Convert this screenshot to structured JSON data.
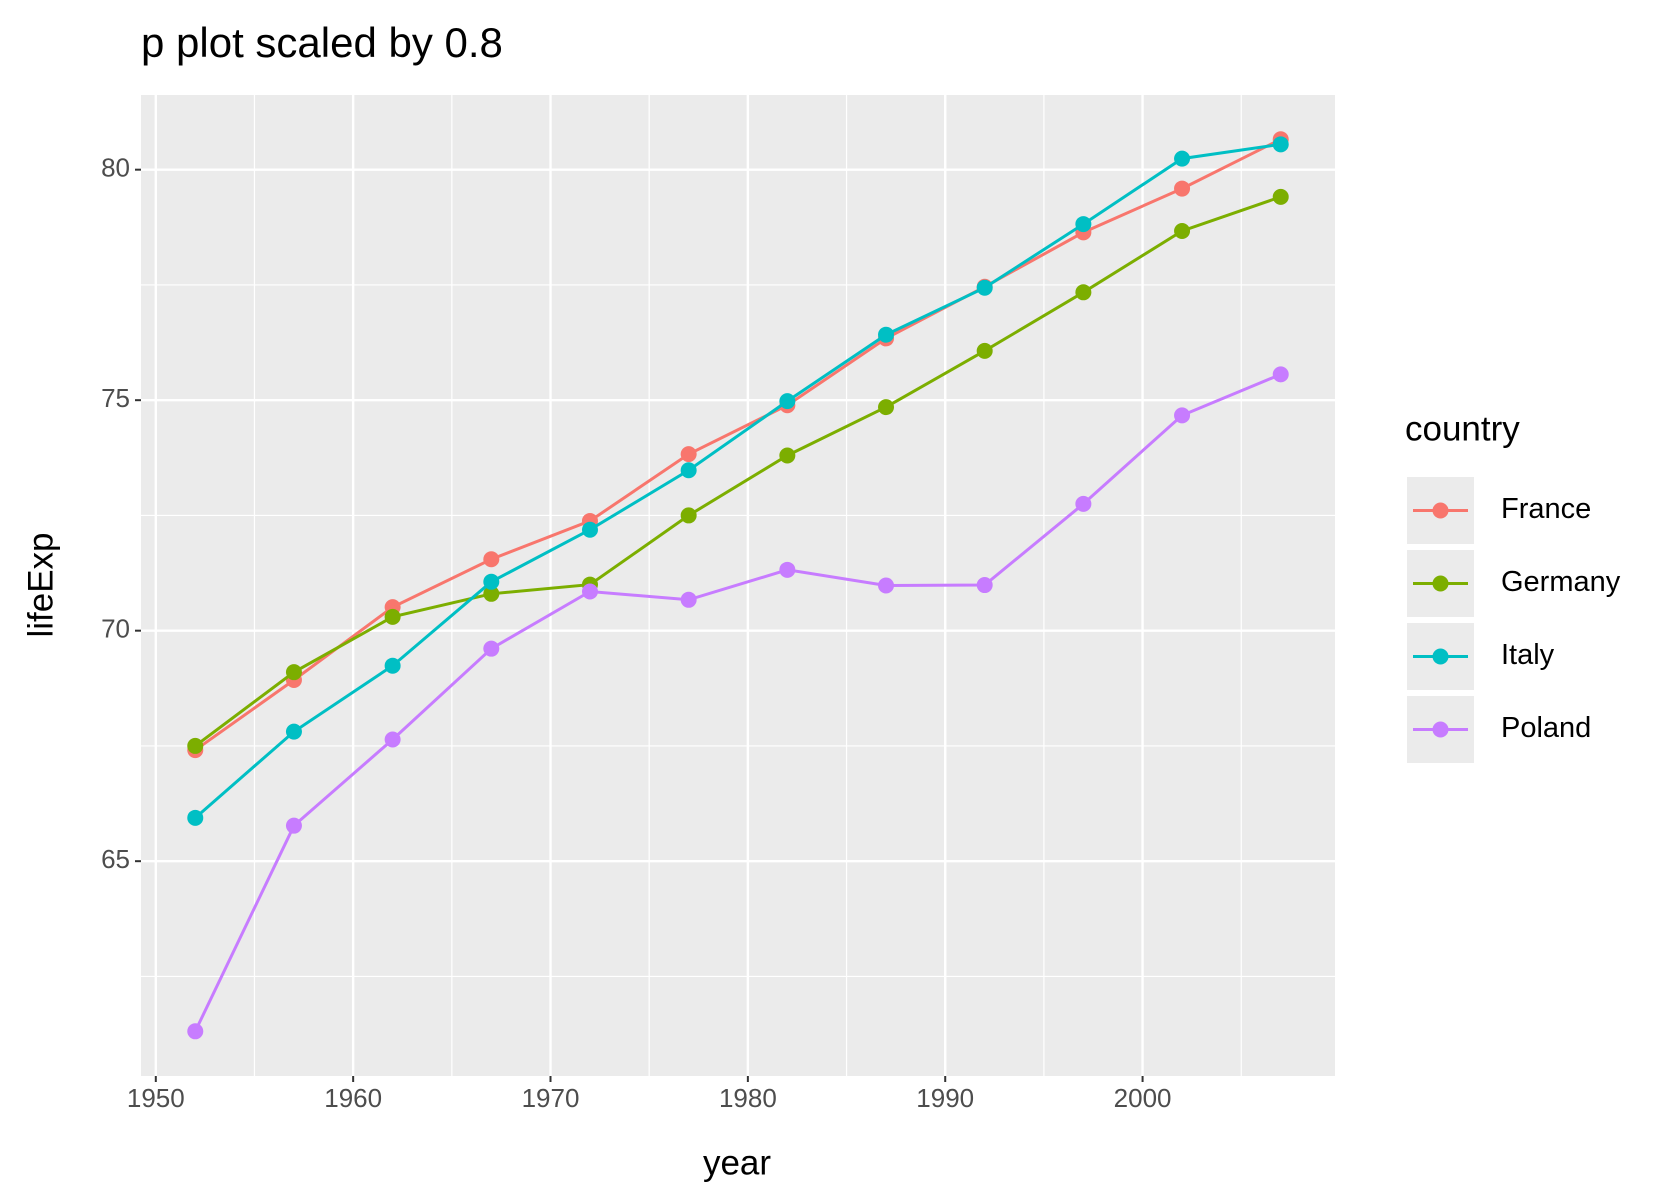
{
  "chart_data": {
    "type": "line",
    "title": "p plot scaled by 0.8",
    "x_label": "year",
    "y_label": "lifeExp",
    "legend_title": "country",
    "x": [
      1952,
      1957,
      1962,
      1967,
      1972,
      1977,
      1982,
      1987,
      1992,
      1997,
      2002,
      2007
    ],
    "series": [
      {
        "name": "France",
        "color": "#F8766D",
        "values": [
          67.41,
          68.93,
          70.51,
          71.55,
          72.38,
          73.83,
          74.89,
          76.34,
          77.46,
          78.64,
          79.59,
          80.66
        ]
      },
      {
        "name": "Germany",
        "color": "#7CAE00",
        "values": [
          67.5,
          69.1,
          70.3,
          70.8,
          71.0,
          72.5,
          73.8,
          74.85,
          76.07,
          77.34,
          78.67,
          79.41
        ]
      },
      {
        "name": "Italy",
        "color": "#00BFC4",
        "values": [
          65.94,
          67.81,
          69.24,
          71.06,
          72.19,
          73.48,
          74.98,
          76.42,
          77.44,
          78.82,
          80.24,
          80.55
        ]
      },
      {
        "name": "Poland",
        "color": "#C77CFF",
        "values": [
          61.31,
          65.77,
          67.64,
          69.61,
          70.85,
          70.67,
          71.32,
          70.98,
          70.99,
          72.75,
          74.67,
          75.56
        ]
      }
    ],
    "xlim": [
      1949.25,
      2009.75
    ],
    "xticks": [
      1950,
      1960,
      1970,
      1980,
      1990,
      2000
    ],
    "ylim": [
      60.34,
      81.62
    ],
    "yticks": [
      65,
      70,
      75,
      80
    ],
    "grid": true,
    "legend_position": "right"
  }
}
